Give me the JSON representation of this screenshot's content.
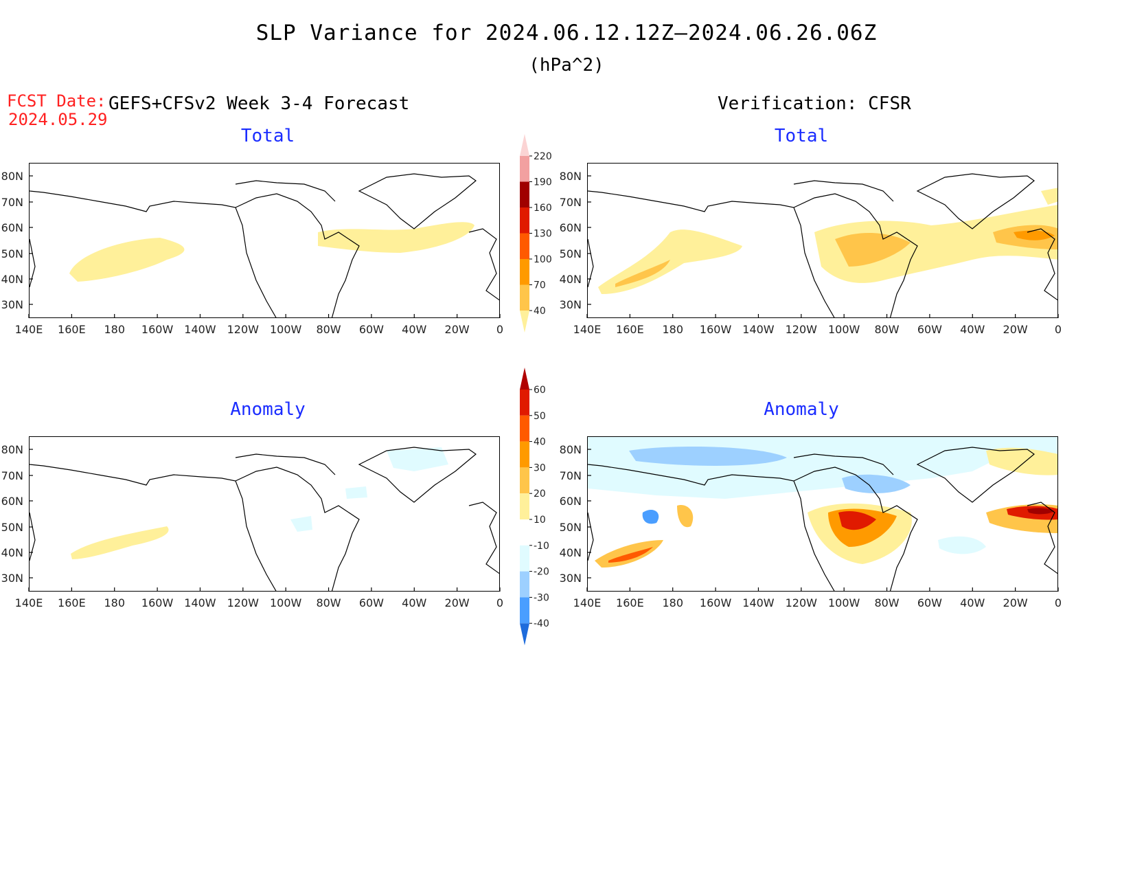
{
  "header": {
    "title": "SLP Variance for 2024.06.12.12Z–2024.06.26.06Z",
    "units": "(hPa^2)",
    "fcst_label": "FCST Date:",
    "fcst_date": "2024.05.29",
    "left_heading": "GEFS+CFSv2 Week 3-4 Forecast",
    "right_heading": "Verification: CFSR"
  },
  "panels": [
    {
      "id": "fcst-total",
      "title": "Total"
    },
    {
      "id": "verif-total",
      "title": "Total"
    },
    {
      "id": "fcst-anomaly",
      "title": "Anomaly"
    },
    {
      "id": "verif-anomaly",
      "title": "Anomaly"
    }
  ],
  "axes": {
    "lon_labels": [
      "140E",
      "160E",
      "180",
      "160W",
      "140W",
      "120W",
      "100W",
      "80W",
      "60W",
      "40W",
      "20W",
      "0"
    ],
    "lat_labels": [
      "80N",
      "70N",
      "60N",
      "50N",
      "40N",
      "30N"
    ]
  },
  "colorbar_total": {
    "labels": [
      "220",
      "190",
      "160",
      "130",
      "100",
      "70",
      "40"
    ],
    "colors": [
      "#fbd4d4",
      "#f2a0a0",
      "#a00000",
      "#e01a00",
      "#ff5a00",
      "#ff9a00",
      "#ffc54a",
      "#fff09a"
    ]
  },
  "colorbar_anomaly": {
    "labels": [
      "60",
      "50",
      "40",
      "30",
      "20",
      "10",
      "-10",
      "-20",
      "-30",
      "-40"
    ],
    "colors": [
      "#b00000",
      "#e01a00",
      "#ff5a00",
      "#ff9a00",
      "#ffc54a",
      "#fff09a",
      "#ffffff",
      "#e0fbff",
      "#9dd0ff",
      "#4a9eff",
      "#1e6cdc"
    ]
  }
}
